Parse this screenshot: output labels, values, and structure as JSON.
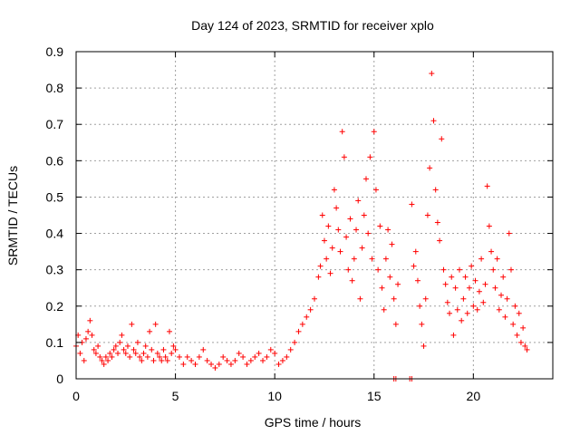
{
  "chart_data": {
    "type": "scatter",
    "title": "Day 124 of 2023, SRMTID for receiver xplo",
    "xlabel": "GPS time / hours",
    "ylabel": "SRMTID / TECUs",
    "xlim": [
      0,
      24
    ],
    "ylim": [
      0,
      0.9
    ],
    "xticks": [
      0,
      5,
      10,
      15,
      20
    ],
    "yticks": [
      0,
      0.1,
      0.2,
      0.3,
      0.4,
      0.5,
      0.6,
      0.7,
      0.8,
      0.9
    ],
    "xtick_labels": [
      "0",
      "5",
      "10",
      "15",
      "20"
    ],
    "ytick_labels": [
      "0",
      "0.1",
      "0.2",
      "0.3",
      "0.4",
      "0.5",
      "0.6",
      "0.7",
      "0.8",
      "0.9"
    ],
    "grid": true,
    "marker": "+",
    "color": "#ff0000",
    "series": [
      {
        "name": "SRMTID",
        "x": [
          0.0,
          0.1,
          0.2,
          0.3,
          0.4,
          0.5,
          0.6,
          0.7,
          0.8,
          0.9,
          1.0,
          1.1,
          1.2,
          1.3,
          1.4,
          1.5,
          1.6,
          1.7,
          1.8,
          1.9,
          2.0,
          2.1,
          2.2,
          2.3,
          2.4,
          2.5,
          2.6,
          2.7,
          2.8,
          2.9,
          3.0,
          3.1,
          3.2,
          3.3,
          3.4,
          3.5,
          3.6,
          3.7,
          3.8,
          3.9,
          4.0,
          4.1,
          4.2,
          4.3,
          4.4,
          4.5,
          4.6,
          4.7,
          4.8,
          4.9,
          5.0,
          5.2,
          5.4,
          5.6,
          5.8,
          6.0,
          6.2,
          6.4,
          6.6,
          6.8,
          7.0,
          7.2,
          7.4,
          7.6,
          7.8,
          8.0,
          8.2,
          8.4,
          8.6,
          8.8,
          9.0,
          9.2,
          9.4,
          9.6,
          9.8,
          10.0,
          10.2,
          10.4,
          10.6,
          10.8,
          11.0,
          11.2,
          11.4,
          11.6,
          11.8,
          12.0,
          12.2,
          12.3,
          12.4,
          12.5,
          12.6,
          12.7,
          12.8,
          12.9,
          13.0,
          13.1,
          13.2,
          13.3,
          13.4,
          13.5,
          13.6,
          13.7,
          13.8,
          13.9,
          14.0,
          14.1,
          14.2,
          14.3,
          14.4,
          14.5,
          14.6,
          14.7,
          14.8,
          14.9,
          15.0,
          15.1,
          15.2,
          15.3,
          15.4,
          15.5,
          15.6,
          15.7,
          15.8,
          15.9,
          16.0,
          16.1,
          16.2,
          16.9,
          17.0,
          17.1,
          17.2,
          17.3,
          17.4,
          17.5,
          17.6,
          17.7,
          17.8,
          17.9,
          18.0,
          18.1,
          18.2,
          18.3,
          18.4,
          18.5,
          18.6,
          18.7,
          18.8,
          18.9,
          19.0,
          19.1,
          19.2,
          19.3,
          19.4,
          19.5,
          19.6,
          19.7,
          19.8,
          19.9,
          20.0,
          20.1,
          20.2,
          20.3,
          20.4,
          20.5,
          20.6,
          20.7,
          20.8,
          20.9,
          21.0,
          21.1,
          21.2,
          21.3,
          21.4,
          21.5,
          21.6,
          21.7,
          21.8,
          21.9,
          22.0,
          22.1,
          22.2,
          22.3,
          22.4,
          22.5,
          22.6,
          22.7,
          16.0,
          16.1,
          16.8,
          16.9
        ],
        "y": [
          0.09,
          0.12,
          0.07,
          0.1,
          0.05,
          0.11,
          0.13,
          0.16,
          0.12,
          0.08,
          0.07,
          0.09,
          0.06,
          0.05,
          0.04,
          0.06,
          0.05,
          0.07,
          0.06,
          0.08,
          0.09,
          0.07,
          0.1,
          0.12,
          0.08,
          0.07,
          0.09,
          0.06,
          0.15,
          0.08,
          0.07,
          0.1,
          0.06,
          0.05,
          0.07,
          0.09,
          0.06,
          0.13,
          0.08,
          0.05,
          0.15,
          0.07,
          0.06,
          0.05,
          0.08,
          0.06,
          0.05,
          0.13,
          0.07,
          0.09,
          0.08,
          0.06,
          0.04,
          0.06,
          0.05,
          0.04,
          0.06,
          0.08,
          0.05,
          0.04,
          0.03,
          0.04,
          0.06,
          0.05,
          0.04,
          0.05,
          0.07,
          0.06,
          0.04,
          0.05,
          0.06,
          0.07,
          0.05,
          0.06,
          0.08,
          0.07,
          0.04,
          0.05,
          0.06,
          0.08,
          0.1,
          0.13,
          0.15,
          0.17,
          0.19,
          0.22,
          0.28,
          0.31,
          0.45,
          0.38,
          0.33,
          0.42,
          0.29,
          0.36,
          0.52,
          0.47,
          0.41,
          0.35,
          0.68,
          0.61,
          0.39,
          0.3,
          0.44,
          0.27,
          0.33,
          0.41,
          0.49,
          0.22,
          0.36,
          0.45,
          0.55,
          0.4,
          0.61,
          0.33,
          0.68,
          0.52,
          0.3,
          0.42,
          0.25,
          0.19,
          0.33,
          0.41,
          0.28,
          0.37,
          0.22,
          0.15,
          0.26,
          0.48,
          0.31,
          0.35,
          0.27,
          0.2,
          0.15,
          0.09,
          0.22,
          0.45,
          0.58,
          0.84,
          0.71,
          0.52,
          0.43,
          0.38,
          0.66,
          0.3,
          0.26,
          0.21,
          0.18,
          0.28,
          0.12,
          0.25,
          0.19,
          0.3,
          0.16,
          0.22,
          0.28,
          0.18,
          0.25,
          0.31,
          0.2,
          0.27,
          0.19,
          0.24,
          0.33,
          0.21,
          0.26,
          0.53,
          0.42,
          0.35,
          0.3,
          0.25,
          0.33,
          0.19,
          0.23,
          0.28,
          0.17,
          0.22,
          0.4,
          0.3,
          0.15,
          0.2,
          0.12,
          0.18,
          0.1,
          0.14,
          0.09,
          0.08,
          0.0,
          0.0,
          0.0,
          0.0
        ]
      }
    ]
  }
}
